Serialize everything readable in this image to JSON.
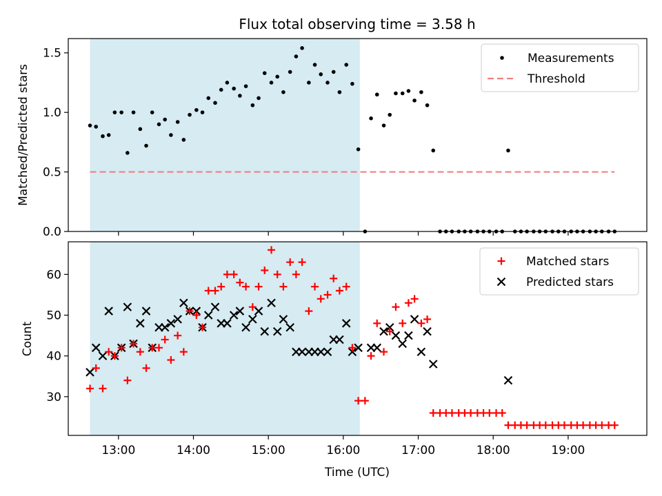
{
  "title": "Flux total observing time = 3.58 h",
  "x_axis": {
    "label": "Time (UTC)",
    "unit": "hours UTC",
    "range": [
      12.33,
      20.05
    ],
    "ticks": [
      13,
      14,
      15,
      16,
      17,
      18,
      19
    ],
    "tick_labels": [
      "13:00",
      "14:00",
      "15:00",
      "16:00",
      "17:00",
      "18:00",
      "19:00"
    ]
  },
  "observing_window": {
    "start": 12.62,
    "end": 16.22,
    "color": "#add8e6"
  },
  "top_panel": {
    "ylabel": "Matched/Predicted stars",
    "ylim": [
      0,
      1.62
    ],
    "yticks": [
      0,
      0.5,
      1.0,
      1.5
    ],
    "ytick_labels": [
      "0.0",
      "0.5",
      "1.0",
      "1.5"
    ],
    "legend": {
      "position": "upper-right",
      "measurements_label": "Measurements",
      "threshold_label": "Threshold"
    },
    "threshold": {
      "value": 0.5,
      "x_start": 12.62,
      "x_end": 19.62,
      "color": "#f08080"
    }
  },
  "bottom_panel": {
    "ylabel": "Count",
    "ylim": [
      20.5,
      68
    ],
    "yticks": [
      30,
      40,
      50,
      60
    ],
    "ytick_labels": [
      "30",
      "40",
      "50",
      "60"
    ],
    "legend": {
      "position": "upper-right",
      "matched_label": "Matched stars",
      "predicted_label": "Predicted stars"
    },
    "matched_color": "#ff0000",
    "predicted_color": "#000000"
  },
  "chart_data": {
    "type": "scatter",
    "x": [
      12.62,
      12.7,
      12.79,
      12.87,
      12.95,
      13.04,
      13.12,
      13.2,
      13.29,
      13.37,
      13.45,
      13.54,
      13.62,
      13.7,
      13.79,
      13.87,
      13.95,
      14.04,
      14.12,
      14.2,
      14.29,
      14.37,
      14.45,
      14.54,
      14.62,
      14.7,
      14.79,
      14.87,
      14.95,
      15.04,
      15.12,
      15.2,
      15.29,
      15.37,
      15.45,
      15.54,
      15.62,
      15.7,
      15.79,
      15.87,
      15.95,
      16.04,
      16.12,
      16.2,
      16.29,
      16.37,
      16.45,
      16.54,
      16.62,
      16.7,
      16.79,
      16.87,
      16.95,
      17.04,
      17.12,
      17.2,
      17.29,
      17.37,
      17.45,
      17.54,
      17.62,
      17.7,
      17.79,
      17.87,
      17.95,
      18.04,
      18.12,
      18.2,
      18.29,
      18.37,
      18.45,
      18.54,
      18.62,
      18.7,
      18.79,
      18.87,
      18.95,
      19.04,
      19.12,
      19.2,
      19.29,
      19.37,
      19.45,
      19.54,
      19.62
    ],
    "series": [
      {
        "name": "Measurements",
        "panel": "top",
        "marker": "dot",
        "values": [
          0.89,
          0.88,
          0.8,
          0.81,
          1.0,
          1.0,
          0.66,
          1.0,
          0.86,
          0.72,
          1.0,
          0.9,
          0.94,
          0.81,
          0.92,
          0.77,
          0.98,
          1.02,
          1.0,
          1.12,
          1.08,
          1.19,
          1.25,
          1.2,
          1.14,
          1.22,
          1.06,
          1.12,
          1.33,
          1.25,
          1.3,
          1.17,
          1.34,
          1.47,
          1.54,
          1.25,
          1.4,
          1.32,
          1.25,
          1.34,
          1.17,
          1.4,
          1.24,
          0.69,
          0.0,
          0.95,
          1.15,
          0.89,
          0.98,
          1.16,
          1.16,
          1.18,
          1.1,
          1.17,
          1.06,
          0.68,
          0.0,
          0.0,
          0.0,
          0.0,
          0.0,
          0.0,
          0.0,
          0.0,
          0.0,
          0.0,
          0.0,
          0.68,
          0.0,
          0.0,
          0.0,
          0.0,
          0.0,
          0.0,
          0.0,
          0.0,
          0.0,
          0.0,
          0.0,
          0.0,
          0.0,
          0.0,
          0.0,
          0.0,
          0.0
        ]
      },
      {
        "name": "Matched stars",
        "panel": "bottom",
        "marker": "plus",
        "values": [
          32,
          37,
          32,
          41,
          40,
          42,
          34,
          43,
          41,
          37,
          42,
          42,
          44,
          39,
          45,
          41,
          51,
          50,
          47,
          56,
          56,
          57,
          60,
          60,
          58,
          57,
          52,
          57,
          61,
          66,
          60,
          57,
          63,
          60,
          63,
          51,
          57,
          54,
          55,
          59,
          56,
          57,
          42,
          29,
          29,
          40,
          48,
          41,
          46,
          52,
          48,
          53,
          54,
          48,
          49,
          26,
          26,
          26,
          26,
          26,
          26,
          26,
          26,
          26,
          26,
          26,
          26,
          23,
          23,
          23,
          23,
          23,
          23,
          23,
          23,
          23,
          23,
          23,
          23,
          23,
          23,
          23,
          23,
          23,
          23
        ]
      },
      {
        "name": "Predicted stars",
        "panel": "bottom",
        "marker": "x",
        "values": [
          36,
          42,
          40,
          51,
          40,
          42,
          52,
          43,
          48,
          51,
          42,
          47,
          47,
          48,
          49,
          53,
          51,
          51,
          47,
          50,
          52,
          48,
          48,
          50,
          51,
          47,
          49,
          51,
          46,
          53,
          46,
          49,
          47,
          41,
          41,
          41,
          41,
          41,
          41,
          44,
          44,
          48,
          41,
          42,
          null,
          42,
          42,
          46,
          47,
          45,
          43,
          45,
          49,
          41,
          46,
          38,
          null,
          null,
          null,
          null,
          null,
          null,
          null,
          null,
          null,
          null,
          null,
          34,
          null,
          null,
          null,
          null,
          null,
          null,
          null,
          null,
          null,
          null,
          null,
          null,
          null,
          null,
          null,
          null,
          null
        ]
      }
    ]
  }
}
